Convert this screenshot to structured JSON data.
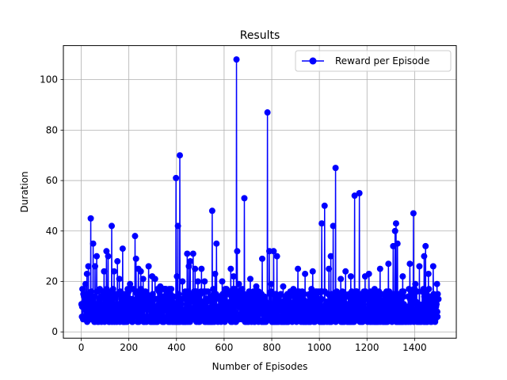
{
  "chart_data": {
    "type": "line",
    "title": "Results",
    "xlabel": "Number of Episodes",
    "ylabel": "Duration",
    "xlim": [
      -75,
      1575
    ],
    "ylim": [
      -2.5,
      113.5
    ],
    "xticks": [
      0,
      200,
      400,
      600,
      800,
      1000,
      1200,
      1400
    ],
    "yticks": [
      0,
      20,
      40,
      60,
      80,
      100
    ],
    "grid": true,
    "legend": "top-right",
    "series": [
      {
        "name": "Reward per Episode",
        "color": "#0000ff",
        "marker": "circle",
        "x_start": 1,
        "x_end": 1500,
        "value_range": [
          4,
          17
        ],
        "peaks": [
          [
            2,
            11
          ],
          [
            9,
            15
          ],
          [
            18,
            19
          ],
          [
            24,
            23
          ],
          [
            30,
            26
          ],
          [
            40,
            45
          ],
          [
            50,
            35
          ],
          [
            58,
            26
          ],
          [
            65,
            30
          ],
          [
            78,
            17
          ],
          [
            96,
            24
          ],
          [
            106,
            32
          ],
          [
            113,
            30
          ],
          [
            128,
            42
          ],
          [
            138,
            24
          ],
          [
            152,
            28
          ],
          [
            160,
            21
          ],
          [
            174,
            33
          ],
          [
            182,
            15
          ],
          [
            205,
            19
          ],
          [
            218,
            17
          ],
          [
            226,
            38
          ],
          [
            230,
            29
          ],
          [
            240,
            25
          ],
          [
            250,
            24
          ],
          [
            260,
            21
          ],
          [
            283,
            26
          ],
          [
            298,
            22
          ],
          [
            310,
            21
          ],
          [
            332,
            18
          ],
          [
            348,
            17
          ],
          [
            372,
            16
          ],
          [
            398,
            61
          ],
          [
            402,
            22
          ],
          [
            406,
            42
          ],
          [
            414,
            70
          ],
          [
            425,
            20
          ],
          [
            445,
            31
          ],
          [
            452,
            26
          ],
          [
            458,
            28
          ],
          [
            470,
            31
          ],
          [
            478,
            25
          ],
          [
            490,
            20
          ],
          [
            505,
            25
          ],
          [
            518,
            20
          ],
          [
            550,
            48
          ],
          [
            562,
            23
          ],
          [
            568,
            35
          ],
          [
            592,
            20
          ],
          [
            610,
            17
          ],
          [
            628,
            25
          ],
          [
            640,
            22
          ],
          [
            652,
            108
          ],
          [
            655,
            32
          ],
          [
            662,
            19
          ],
          [
            685,
            53
          ],
          [
            710,
            21
          ],
          [
            735,
            18
          ],
          [
            760,
            29
          ],
          [
            782,
            87
          ],
          [
            790,
            32
          ],
          [
            798,
            19
          ],
          [
            808,
            32
          ],
          [
            822,
            30
          ],
          [
            848,
            18
          ],
          [
            880,
            16
          ],
          [
            910,
            25
          ],
          [
            940,
            23
          ],
          [
            972,
            24
          ],
          [
            1010,
            43
          ],
          [
            1022,
            50
          ],
          [
            1040,
            25
          ],
          [
            1048,
            30
          ],
          [
            1058,
            42
          ],
          [
            1068,
            65
          ],
          [
            1090,
            21
          ],
          [
            1110,
            24
          ],
          [
            1132,
            22
          ],
          [
            1148,
            54
          ],
          [
            1168,
            55
          ],
          [
            1192,
            22
          ],
          [
            1208,
            23
          ],
          [
            1232,
            17
          ],
          [
            1255,
            25
          ],
          [
            1290,
            27
          ],
          [
            1310,
            34
          ],
          [
            1318,
            40
          ],
          [
            1322,
            43
          ],
          [
            1328,
            35
          ],
          [
            1350,
            22
          ],
          [
            1380,
            27
          ],
          [
            1395,
            47
          ],
          [
            1403,
            19
          ],
          [
            1420,
            26
          ],
          [
            1440,
            30
          ],
          [
            1446,
            34
          ],
          [
            1458,
            23
          ],
          [
            1478,
            26
          ],
          [
            1494,
            19
          ]
        ]
      }
    ]
  }
}
